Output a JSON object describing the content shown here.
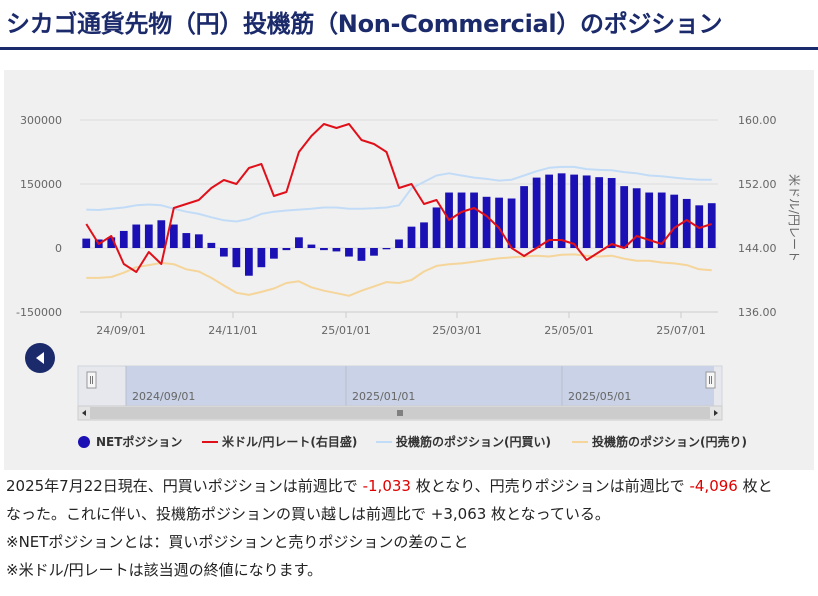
{
  "page": {
    "title": "シカゴ通貨先物（円）投機筋（Non-Commercial）のポジション"
  },
  "chart_data": {
    "type": "bar+line",
    "y_left": {
      "ticks": [
        "300000",
        "150000",
        "0",
        "-150000"
      ],
      "range": [
        -150000,
        300000
      ]
    },
    "y_right": {
      "label": "米ドル/円レート",
      "ticks": [
        "160.00",
        "152.00",
        "144.00",
        "136.00"
      ],
      "range": [
        136,
        160
      ]
    },
    "x_ticks": [
      "24/09/01",
      "24/11/01",
      "25/01/01",
      "25/03/01",
      "25/05/01",
      "25/07/01"
    ],
    "series": [
      {
        "name": "NETポジション",
        "kind": "bar",
        "color": "#1a10b4",
        "values": [
          22000,
          20000,
          25000,
          40000,
          55000,
          55000,
          65000,
          55000,
          35000,
          32000,
          12000,
          -20000,
          -45000,
          -65000,
          -45000,
          -25000,
          -5000,
          25000,
          8000,
          -5000,
          -8000,
          -20000,
          -30000,
          -18000,
          -3000,
          20000,
          50000,
          60000,
          95000,
          130000,
          130000,
          130000,
          120000,
          118000,
          116000,
          145000,
          165000,
          172000,
          175000,
          172000,
          170000,
          166000,
          164000,
          145000,
          140000,
          130000,
          130000,
          125000,
          115000,
          100000,
          105000
        ]
      },
      {
        "name": "米ドル/円レート(右目盛)",
        "kind": "line",
        "color": "#e0101a",
        "values": [
          147.0,
          144.5,
          145.5,
          142.0,
          141.0,
          143.5,
          142.0,
          149.0,
          149.5,
          150.0,
          151.5,
          152.5,
          152.0,
          154.0,
          154.5,
          150.5,
          151.0,
          156.0,
          158.0,
          159.5,
          159.0,
          159.5,
          157.5,
          157.0,
          156.0,
          151.5,
          152.0,
          149.5,
          150.0,
          147.5,
          148.5,
          149.0,
          148.0,
          146.5,
          144.0,
          143.0,
          144.0,
          145.0,
          145.0,
          144.5,
          142.5,
          143.5,
          144.5,
          144.0,
          145.5,
          145.0,
          144.5,
          146.5,
          147.5,
          146.5,
          147.0
        ]
      },
      {
        "name": "投機筋のポジション(円買い)",
        "kind": "line",
        "color": "#c2dcf7",
        "values": [
          90000,
          89000,
          92000,
          95000,
          100000,
          102000,
          100000,
          92000,
          85000,
          80000,
          72000,
          65000,
          62000,
          68000,
          80000,
          85000,
          88000,
          90000,
          92000,
          95000,
          95000,
          92000,
          92000,
          93000,
          95000,
          100000,
          140000,
          155000,
          170000,
          175000,
          170000,
          165000,
          162000,
          158000,
          160000,
          170000,
          180000,
          188000,
          190000,
          190000,
          185000,
          183000,
          182000,
          178000,
          175000,
          170000,
          168000,
          165000,
          162000,
          160000,
          160000
        ]
      },
      {
        "name": "投機筋のポジション(円売り)",
        "kind": "line",
        "color": "#f5d59a",
        "values": [
          -70000,
          -70000,
          -68000,
          -58000,
          -45000,
          -40000,
          -35000,
          -38000,
          -50000,
          -55000,
          -70000,
          -88000,
          -105000,
          -110000,
          -103000,
          -95000,
          -82000,
          -78000,
          -92000,
          -100000,
          -106000,
          -112000,
          -100000,
          -90000,
          -80000,
          -82000,
          -75000,
          -55000,
          -42000,
          -38000,
          -36000,
          -32000,
          -28000,
          -24000,
          -22000,
          -20000,
          -18000,
          -20000,
          -16000,
          -15000,
          -18000,
          -20000,
          -18000,
          -25000,
          -30000,
          -30000,
          -34000,
          -36000,
          -40000,
          -50000,
          -52000
        ]
      }
    ],
    "navigator": {
      "labels": [
        "2024/09/01",
        "2025/01/01",
        "2025/05/01"
      ]
    },
    "legend_position": "bottom"
  },
  "commentary": {
    "line1_a": "2025年7月22日現在、円買いポジションは前週比で",
    "line1_v1": "-1,033",
    "line1_b": "枚となり、円売りポジションは前週比で",
    "line1_v2": "-4,096",
    "line1_c": "枚と",
    "line2": "なった。これに伴い、投機筋ポジションの買い越しは前週比で +3,063 枚となっている。",
    "note1": "※NETポジションとは：買いポジションと売りポジションの差のこと",
    "note2": "※米ドル/円レートは該当週の終値になります。"
  }
}
